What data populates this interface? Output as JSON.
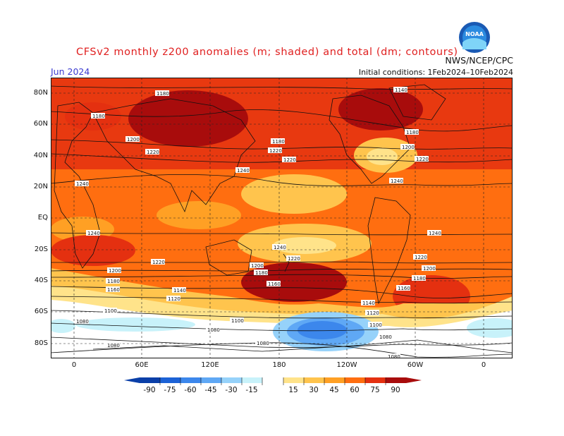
{
  "header": {
    "title": "CFSv2 monthly z200 anomalies (m; shaded) and total (dm; contours)",
    "org": "NWS/NCEP/CPC",
    "month": "Jun 2024",
    "initial_conditions": "Initial conditions: 1Feb2024–10Feb2024",
    "logo_text": "NOAA"
  },
  "map": {
    "lat_labels": [
      "80N",
      "60N",
      "40N",
      "20N",
      "EQ",
      "20S",
      "40S",
      "60S",
      "80S"
    ],
    "lon_labels": [
      "0",
      "60E",
      "120E",
      "180",
      "120W",
      "60W",
      "0"
    ],
    "contour_labels": [
      "1080",
      "1100",
      "1120",
      "1140",
      "1160",
      "1180",
      "1200",
      "1220",
      "1240"
    ],
    "colors": {
      "pos15": "#ffe38a",
      "pos30": "#ffc44d",
      "pos45": "#ffa024",
      "pos60": "#ff6e10",
      "pos75": "#e43010",
      "pos90": "#a80c0c",
      "neg15": "#c8f2fa",
      "neg30": "#96d2fa",
      "neg45": "#5fa8f5",
      "neg60": "#3c87ec",
      "neg75": "#1c62d6",
      "neg90": "#0a3fa8"
    }
  },
  "colorbar": {
    "labels": [
      "-90",
      "-75",
      "-60",
      "-45",
      "-30",
      "-15",
      "15",
      "30",
      "45",
      "60",
      "75",
      "90"
    ],
    "colors": [
      "#0a3fa8",
      "#1c62d6",
      "#3c87ec",
      "#5fa8f5",
      "#96d2fa",
      "#c8f2fa",
      "#ffffff",
      "#ffe38a",
      "#ffc44d",
      "#ffa024",
      "#ff6e10",
      "#e43010",
      "#a80c0c"
    ]
  }
}
